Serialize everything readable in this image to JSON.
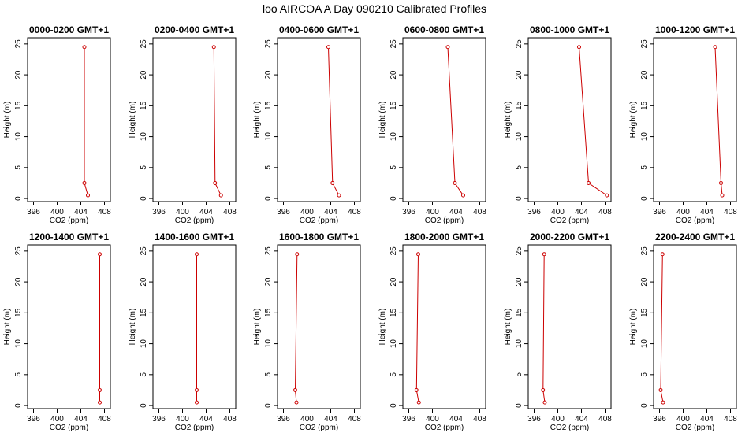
{
  "title": "loo AIRCOA A  Day 090210  Calibrated Profiles",
  "chart_data": {
    "type": "line",
    "xlabel": "CO2 (ppm)",
    "ylabel": "Height (m)",
    "xlim": [
      395,
      409
    ],
    "ylim": [
      -0.5,
      26
    ],
    "xticks": [
      "396",
      "400",
      "404",
      "408"
    ],
    "yticks": [
      "0",
      "5",
      "10",
      "15",
      "20",
      "25"
    ],
    "heights": [
      24.5,
      2.5,
      0.5
    ],
    "line_color": "#cc0000",
    "grid": false,
    "panels": [
      {
        "title": "0000-0200 GMT+1",
        "co2": [
          404.6,
          404.6,
          405.2
        ]
      },
      {
        "title": "0200-0400 GMT+1",
        "co2": [
          405.3,
          405.5,
          406.5
        ]
      },
      {
        "title": "0400-0600 GMT+1",
        "co2": [
          403.6,
          404.3,
          405.4
        ]
      },
      {
        "title": "0600-0800 GMT+1",
        "co2": [
          402.6,
          403.8,
          405.2
        ]
      },
      {
        "title": "0800-1000 GMT+1",
        "co2": [
          403.6,
          405.2,
          408.3
        ]
      },
      {
        "title": "1000-1200 GMT+1",
        "co2": [
          405.4,
          406.4,
          406.6
        ]
      },
      {
        "title": "1200-1400 GMT+1",
        "co2": [
          407.2,
          407.2,
          407.2
        ]
      },
      {
        "title": "1400-1600 GMT+1",
        "co2": [
          402.4,
          402.4,
          402.4
        ]
      },
      {
        "title": "1600-1800 GMT+1",
        "co2": [
          398.3,
          398.0,
          398.2
        ]
      },
      {
        "title": "1800-2000 GMT+1",
        "co2": [
          397.6,
          397.3,
          397.7
        ]
      },
      {
        "title": "2000-2200 GMT+1",
        "co2": [
          397.7,
          397.5,
          397.8
        ]
      },
      {
        "title": "2200-2400 GMT+1",
        "co2": [
          396.5,
          396.2,
          396.6
        ]
      }
    ]
  }
}
